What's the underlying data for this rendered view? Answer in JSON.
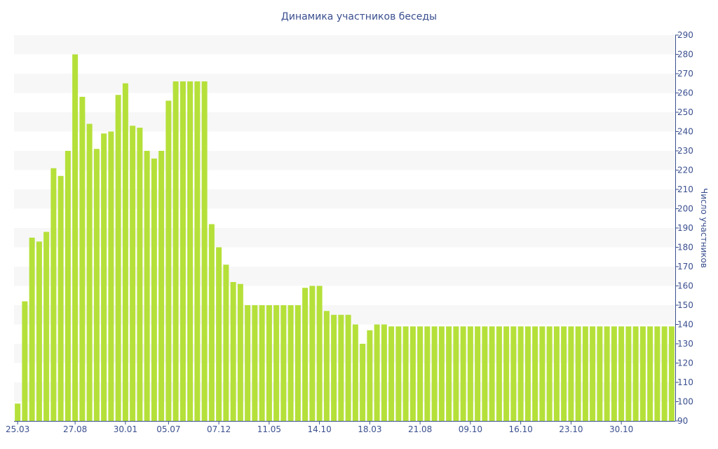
{
  "chart_data": {
    "type": "bar",
    "title": "Динамика участников беседы",
    "ylabel": "Число участников",
    "xlabel": "",
    "ylim": [
      90,
      290
    ],
    "yticks": [
      90,
      100,
      110,
      120,
      130,
      140,
      150,
      160,
      170,
      180,
      190,
      200,
      210,
      220,
      230,
      240,
      250,
      260,
      270,
      280,
      290
    ],
    "x_tick_labels": [
      "25.03",
      "27.08",
      "30.01",
      "05.07",
      "07.12",
      "11.05",
      "14.10",
      "18.03",
      "21.08",
      "09.10",
      "16.10",
      "23.10",
      "30.10"
    ],
    "x_tick_positions": [
      0,
      8,
      15,
      21,
      28,
      35,
      42,
      49,
      56,
      63,
      70,
      77,
      84
    ],
    "values": [
      99,
      152,
      185,
      183,
      188,
      221,
      217,
      230,
      280,
      258,
      244,
      231,
      239,
      240,
      259,
      265,
      243,
      242,
      230,
      226,
      230,
      256,
      266,
      266,
      266,
      266,
      266,
      192,
      180,
      171,
      162,
      161,
      150,
      150,
      150,
      150,
      150,
      150,
      150,
      150,
      159,
      160,
      160,
      147,
      145,
      145,
      145,
      140,
      130,
      137,
      140,
      140,
      139,
      139,
      139,
      139,
      139,
      139,
      139,
      139,
      139,
      139,
      139,
      139,
      139,
      139,
      139,
      139,
      139,
      139,
      139,
      139,
      139,
      139,
      139,
      139,
      139,
      139,
      139,
      139,
      139,
      139,
      139,
      139,
      139,
      139,
      139,
      139,
      139,
      139,
      139,
      139
    ],
    "bar_color": "#b5e03a",
    "band_color": "#f7f7f7",
    "text_color": "#3a4f8f",
    "grid": "alternating horizontal bands",
    "y_axis_position": "right"
  }
}
